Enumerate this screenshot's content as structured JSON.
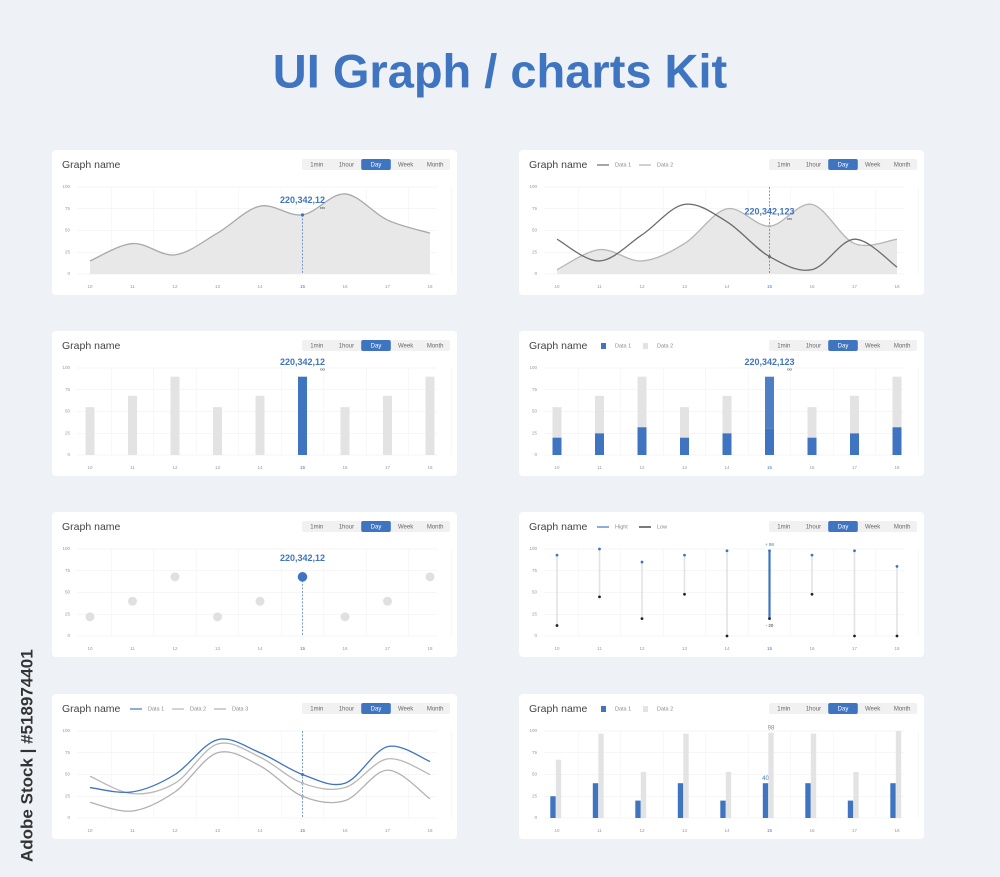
{
  "title": "UI Graph / charts Kit",
  "watermark": "Adobe Stock | #518974401",
  "chart_data": [
    {
      "type": "area",
      "title": "Graph name",
      "tabs": [
        "1min",
        "1hour",
        "Day",
        "Week",
        "Month"
      ],
      "active_tab": 2,
      "categories": [
        "10",
        "11",
        "12",
        "13",
        "14",
        "15",
        "16",
        "17",
        "18"
      ],
      "series": [
        {
          "name": null,
          "color": "#a9a9a9",
          "values": [
            15,
            35,
            22,
            47,
            78,
            68,
            92,
            62,
            47
          ]
        }
      ],
      "highlight": 5,
      "annotation": {
        "text": "220,342,12",
        "sub": "xxx"
      },
      "ylim": [
        0,
        100
      ],
      "yticks": [
        0,
        25,
        50,
        75,
        100
      ],
      "grid": true
    },
    {
      "type": "line",
      "title": "Graph name",
      "tabs": [
        "1min",
        "1hour",
        "Day",
        "Week",
        "Month"
      ],
      "active_tab": 2,
      "categories": [
        "10",
        "11",
        "12",
        "13",
        "14",
        "15",
        "16",
        "17",
        "18"
      ],
      "series": [
        {
          "name": "Data 1",
          "color": "#6b6b6b",
          "values": [
            40,
            15,
            45,
            80,
            60,
            20,
            5,
            40,
            8
          ]
        },
        {
          "name": "Data 2",
          "color": "#b5b5b5",
          "area": true,
          "values": [
            5,
            28,
            15,
            35,
            75,
            55,
            80,
            35,
            40
          ]
        }
      ],
      "highlight": 5,
      "annotation": {
        "text": "220,342,123",
        "sub": "xxx"
      },
      "ylim": [
        0,
        100
      ],
      "yticks": [
        0,
        25,
        50,
        75,
        100
      ],
      "grid": true
    },
    {
      "type": "bar",
      "title": "Graph name",
      "tabs": [
        "1min",
        "1hour",
        "Day",
        "Week",
        "Month"
      ],
      "active_tab": 2,
      "categories": [
        "10",
        "11",
        "12",
        "13",
        "14",
        "15",
        "16",
        "17",
        "18"
      ],
      "series": [
        {
          "name": null,
          "color": "#e3e3e3",
          "values": [
            55,
            68,
            90,
            55,
            68,
            90,
            55,
            68,
            90
          ]
        }
      ],
      "highlight": 5,
      "highlight_color": "#3f74c0",
      "annotation": {
        "text": "220,342,12",
        "sub": "xxx"
      },
      "ylim": [
        0,
        100
      ],
      "yticks": [
        0,
        25,
        50,
        75,
        100
      ],
      "grid": true
    },
    {
      "type": "stacked",
      "title": "Graph name",
      "tabs": [
        "1min",
        "1hour",
        "Day",
        "Week",
        "Month"
      ],
      "active_tab": 2,
      "categories": [
        "10",
        "11",
        "12",
        "13",
        "14",
        "15",
        "16",
        "17",
        "18"
      ],
      "series": [
        {
          "name": "Data 1",
          "color": "#3f74c0",
          "values": [
            20,
            25,
            32,
            20,
            25,
            30,
            20,
            25,
            32
          ]
        },
        {
          "name": "Data 2",
          "color": "#e3e3e3",
          "values": [
            35,
            43,
            58,
            35,
            43,
            60,
            35,
            43,
            58
          ]
        }
      ],
      "highlight": 5,
      "highlight_color": "#3f74c0",
      "annotation": {
        "text": "220,342,123",
        "sub": "xxx"
      },
      "ylim": [
        0,
        100
      ],
      "yticks": [
        0,
        25,
        50,
        75,
        100
      ],
      "grid": true
    },
    {
      "type": "dot",
      "title": "Graph name",
      "tabs": [
        "1min",
        "1hour",
        "Day",
        "Week",
        "Month"
      ],
      "active_tab": 2,
      "categories": [
        "10",
        "11",
        "12",
        "13",
        "14",
        "15",
        "16",
        "17",
        "18"
      ],
      "series": [
        {
          "name": null,
          "color": "#e0e0e0",
          "values": [
            22,
            40,
            68,
            22,
            40,
            68,
            22,
            40,
            68
          ]
        }
      ],
      "highlight": 5,
      "highlight_color": "#3f74c0",
      "annotation": {
        "text": "220,342,12"
      },
      "ylim": [
        0,
        100
      ],
      "yticks": [
        0,
        25,
        50,
        75,
        100
      ],
      "grid": true
    },
    {
      "type": "range",
      "title": "Graph name",
      "tabs": [
        "1min",
        "1hour",
        "Day",
        "Week",
        "Month"
      ],
      "active_tab": 2,
      "categories": [
        "10",
        "11",
        "12",
        "13",
        "14",
        "15",
        "16",
        "17",
        "18"
      ],
      "series": [
        {
          "name": "Hight",
          "color": "#3f74c0",
          "values": [
            93,
            100,
            85,
            93,
            98,
            98,
            93,
            98,
            80
          ],
          "value_labels": [
            null,
            null,
            null,
            null,
            null,
            "+ 98",
            null,
            null,
            null
          ]
        },
        {
          "name": "Low",
          "color": "#222222",
          "values": [
            12,
            45,
            20,
            48,
            0,
            20,
            48,
            0,
            0
          ],
          "value_labels": [
            null,
            null,
            null,
            null,
            null,
            "- 20",
            null,
            null,
            null
          ]
        }
      ],
      "highlight": 5,
      "highlight_color": "#3f74c0",
      "ylim": [
        0,
        100
      ],
      "yticks": [
        0,
        25,
        50,
        75,
        100
      ],
      "grid": true
    },
    {
      "type": "line",
      "title": "Graph name",
      "tabs": [
        "1min",
        "1hour",
        "Day",
        "Week",
        "Month"
      ],
      "active_tab": 2,
      "categories": [
        "10",
        "11",
        "12",
        "13",
        "14",
        "15",
        "16",
        "17",
        "18"
      ],
      "series": [
        {
          "name": "Data 1",
          "color": "#3f74c0",
          "values": [
            35,
            30,
            50,
            90,
            75,
            50,
            40,
            82,
            65
          ]
        },
        {
          "name": "Data 2",
          "color": "#b8b8b8",
          "values": [
            48,
            28,
            40,
            85,
            70,
            40,
            35,
            68,
            50
          ]
        },
        {
          "name": "Data 3",
          "color": "#b0b0b0",
          "values": [
            18,
            8,
            30,
            75,
            60,
            25,
            20,
            55,
            22
          ]
        }
      ],
      "highlight": 5,
      "ylim": [
        0,
        100
      ],
      "yticks": [
        0,
        25,
        50,
        75,
        100
      ],
      "grid": true
    },
    {
      "type": "grouped",
      "title": "Graph name",
      "tabs": [
        "1min",
        "1hour",
        "Day",
        "Week",
        "Month"
      ],
      "active_tab": 2,
      "categories": [
        "10",
        "11",
        "12",
        "13",
        "14",
        "15",
        "16",
        "17",
        "18"
      ],
      "series": [
        {
          "name": "Data 1",
          "color": "#3f74c0",
          "values": [
            25,
            40,
            20,
            40,
            20,
            40,
            40,
            20,
            40
          ]
        },
        {
          "name": "Data 2",
          "color": "#e3e3e3",
          "values": [
            67,
            97,
            53,
            97,
            53,
            98,
            97,
            53,
            100
          ]
        }
      ],
      "highlight": 5,
      "ylim": [
        0,
        100
      ],
      "yticks": [
        0,
        25,
        50,
        75,
        100
      ],
      "grid": true
    }
  ]
}
